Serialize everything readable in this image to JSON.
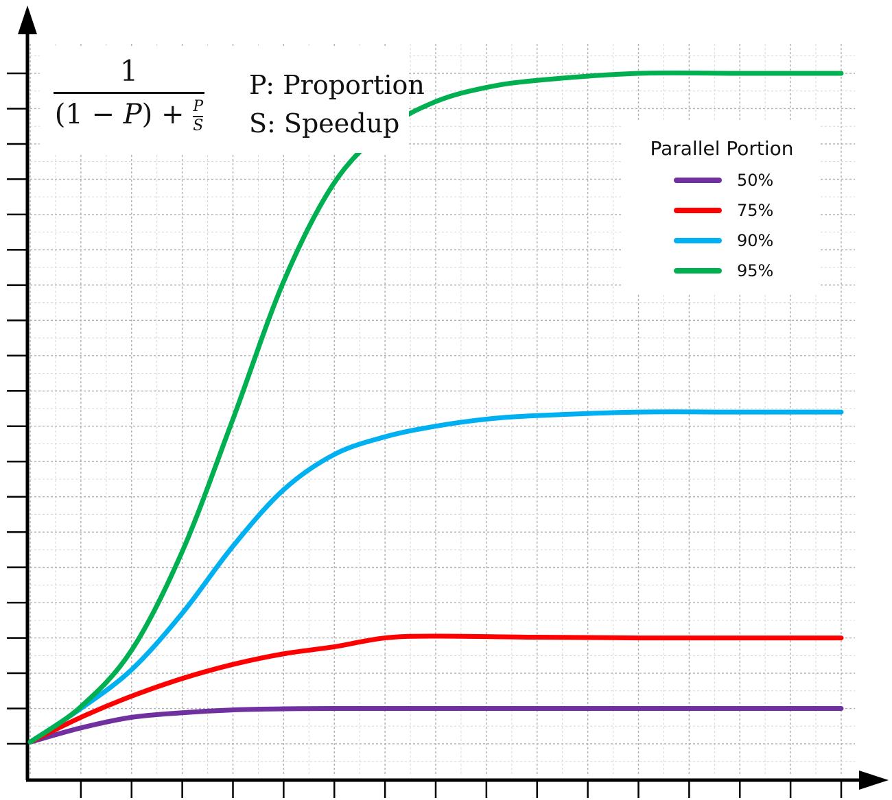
{
  "chart_data": {
    "type": "line",
    "title": "",
    "xlabel": "",
    "ylabel": "",
    "xlim": [
      0,
      16
    ],
    "ylim": [
      0,
      19
    ],
    "x_ticks": 16,
    "y_ticks": 19,
    "grid": true,
    "legend": {
      "title": "Parallel Portion",
      "placement": "top-right"
    },
    "series": [
      {
        "name": "50%",
        "color": "#7030a0",
        "x": [
          0,
          1,
          2,
          3,
          4,
          5,
          6,
          8,
          10,
          12,
          14,
          16
        ],
        "y": [
          0.05,
          0.45,
          0.75,
          0.88,
          0.96,
          0.99,
          1.0,
          1.0,
          1.0,
          1.0,
          1.0,
          1.0
        ]
      },
      {
        "name": "75%",
        "color": "#ff0000",
        "x": [
          0,
          1,
          2,
          3,
          4,
          5,
          6,
          7,
          8,
          10,
          12,
          14,
          16
        ],
        "y": [
          0.05,
          0.75,
          1.35,
          1.85,
          2.25,
          2.55,
          2.75,
          3.0,
          3.05,
          3.02,
          3.0,
          3.0,
          3.0
        ]
      },
      {
        "name": "90%",
        "color": "#00b0f0",
        "x": [
          0,
          1,
          2,
          3,
          4,
          5,
          6,
          7,
          8,
          9,
          10,
          12,
          14,
          16
        ],
        "y": [
          0.05,
          1.0,
          2.1,
          3.7,
          5.6,
          7.2,
          8.2,
          8.7,
          9.0,
          9.2,
          9.3,
          9.4,
          9.4,
          9.4
        ]
      },
      {
        "name": "95%",
        "color": "#00b050",
        "x": [
          0,
          1,
          2,
          3,
          4,
          5,
          6,
          7,
          8,
          9,
          10,
          12,
          14,
          16
        ],
        "y": [
          0.05,
          1.05,
          2.65,
          5.45,
          9.2,
          13.1,
          15.9,
          17.4,
          18.2,
          18.6,
          18.8,
          19.0,
          19.0,
          19.0
        ]
      }
    ]
  },
  "formula": {
    "numerator": "1",
    "denominator_left": "(1 − ",
    "denominator_var": "P",
    "denominator_mid": ") + ",
    "mini_num": "P",
    "mini_den": "S"
  },
  "definitions": {
    "p": "P: Proportion",
    "s": "S: Speedup"
  }
}
